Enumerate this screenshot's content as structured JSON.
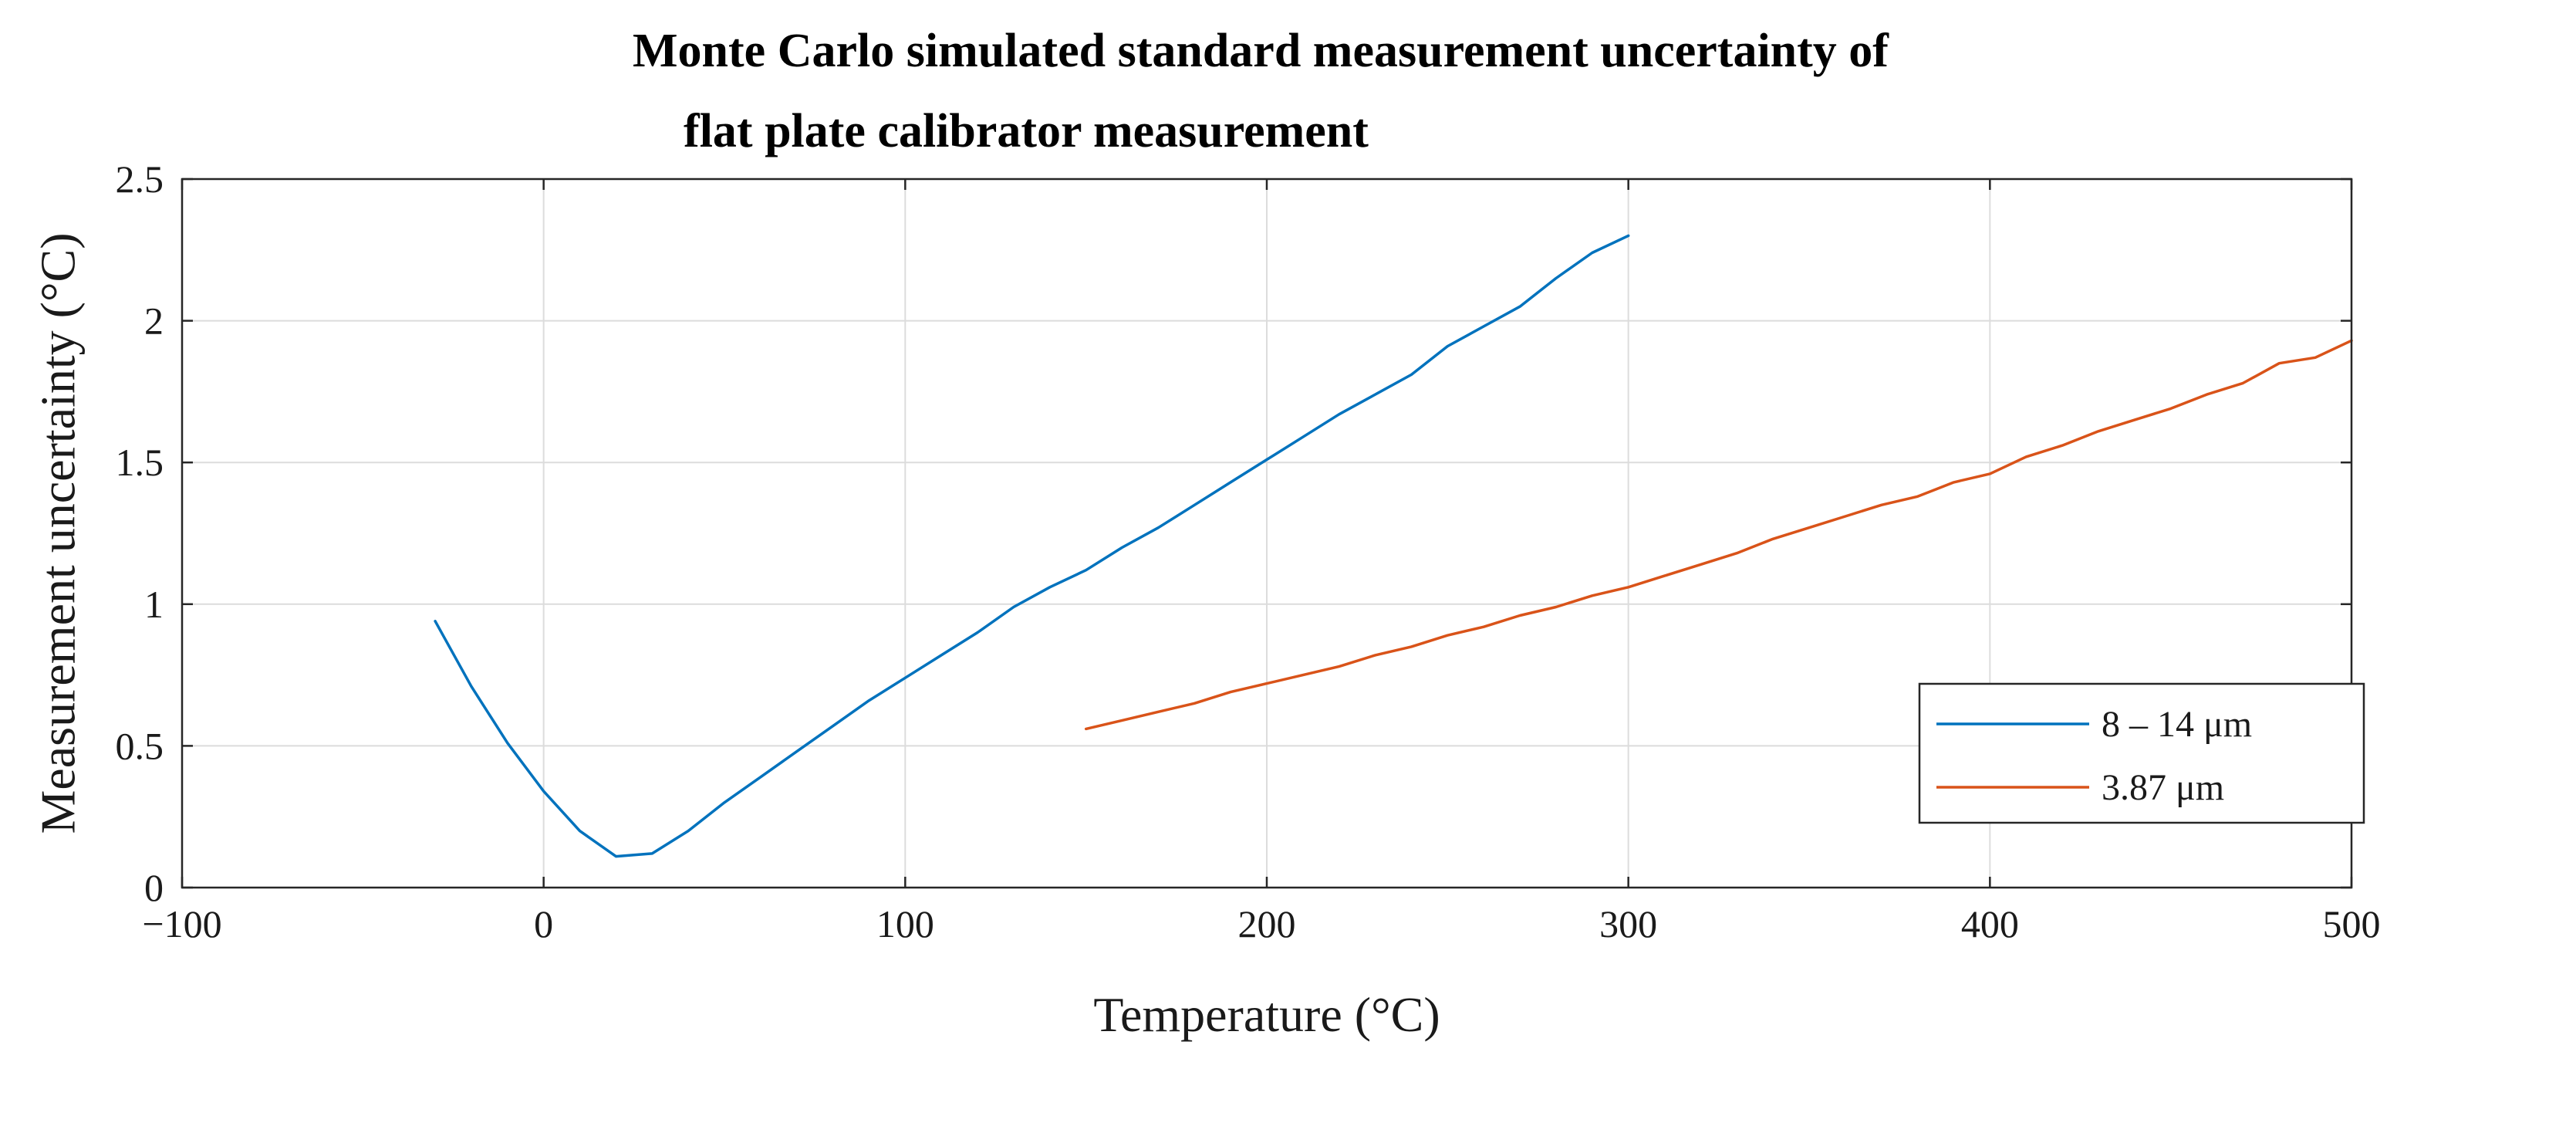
{
  "chart_data": {
    "type": "line",
    "title_lines": [
      "Monte Carlo simulated standard measurement uncertainty of",
      "flat plate calibrator measurement"
    ],
    "xlabel": "Temperature (°C)",
    "ylabel": "Measurement uncertainty (°C)",
    "xlim": [
      -100,
      500
    ],
    "ylim": [
      0,
      2.5
    ],
    "xticks": [
      -100,
      0,
      100,
      200,
      300,
      400,
      500
    ],
    "xtick_labels": [
      "−100",
      "0",
      "100",
      "200",
      "300",
      "400",
      "500"
    ],
    "yticks": [
      0,
      0.5,
      1,
      1.5,
      2,
      2.5
    ],
    "ytick_labels": [
      "0",
      "0.5",
      "1",
      "1.5",
      "2",
      "2.5"
    ],
    "grid": true,
    "legend_position": "lower-right",
    "series": [
      {
        "name": "8 – 14 μm",
        "color": "#0072BD",
        "x": [
          -30,
          -20,
          -10,
          0,
          10,
          20,
          30,
          40,
          50,
          60,
          70,
          80,
          90,
          100,
          110,
          120,
          130,
          140,
          150,
          160,
          170,
          180,
          190,
          200,
          210,
          220,
          230,
          240,
          250,
          260,
          270,
          280,
          290,
          300
        ],
        "y": [
          0.94,
          0.71,
          0.51,
          0.34,
          0.2,
          0.11,
          0.12,
          0.2,
          0.3,
          0.39,
          0.48,
          0.57,
          0.66,
          0.74,
          0.82,
          0.9,
          0.99,
          1.06,
          1.12,
          1.2,
          1.27,
          1.35,
          1.43,
          1.51,
          1.59,
          1.67,
          1.74,
          1.81,
          1.91,
          1.98,
          2.05,
          2.15,
          2.24,
          2.3
        ]
      },
      {
        "name": "3.87 μm",
        "color": "#D95319",
        "x": [
          150,
          160,
          170,
          180,
          190,
          200,
          210,
          220,
          230,
          240,
          250,
          260,
          270,
          280,
          290,
          300,
          310,
          320,
          330,
          340,
          350,
          360,
          370,
          380,
          390,
          400,
          410,
          420,
          430,
          440,
          450,
          460,
          470,
          480,
          490,
          500
        ],
        "y": [
          0.56,
          0.59,
          0.62,
          0.65,
          0.69,
          0.72,
          0.75,
          0.78,
          0.82,
          0.85,
          0.89,
          0.92,
          0.96,
          0.99,
          1.03,
          1.06,
          1.1,
          1.14,
          1.18,
          1.23,
          1.27,
          1.31,
          1.35,
          1.38,
          1.43,
          1.46,
          1.52,
          1.56,
          1.61,
          1.65,
          1.69,
          1.74,
          1.78,
          1.85,
          1.87,
          1.93
        ]
      }
    ]
  }
}
